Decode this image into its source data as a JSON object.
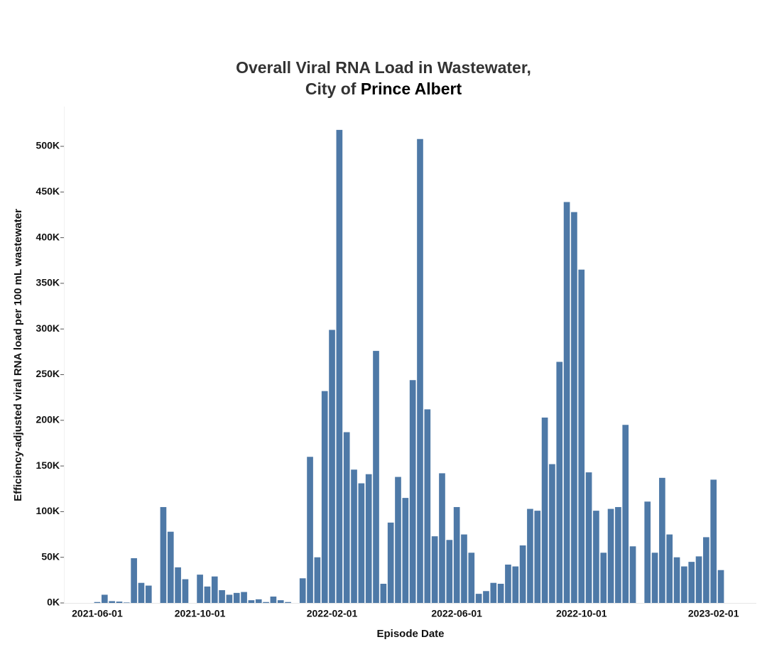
{
  "chart_data": {
    "type": "bar",
    "title": "Overall Viral RNA Load in Wastewater,",
    "title_city_prefix": "City of",
    "title_city": "Prince Albert",
    "x_label": "Episode Date",
    "y_label": "Efficiency-adjusted viral RNA load per 100 mL wastewater",
    "color": "#4e79a7",
    "categories": [
      "2021-06-01",
      null,
      null,
      null,
      null,
      null,
      null,
      null,
      null,
      null,
      null,
      null,
      null,
      null,
      "2021-10-01",
      null,
      null,
      null,
      null,
      null,
      null,
      null,
      null,
      null,
      null,
      null,
      null,
      null,
      null,
      null,
      null,
      null,
      "2022-02-01",
      null,
      null,
      null,
      null,
      null,
      null,
      null,
      null,
      null,
      null,
      null,
      null,
      null,
      null,
      null,
      null,
      "2022-06-01",
      null,
      null,
      null,
      null,
      null,
      null,
      null,
      null,
      null,
      null,
      null,
      null,
      null,
      null,
      null,
      null,
      "2022-10-01",
      null,
      null,
      null,
      null,
      null,
      null,
      null,
      null,
      null,
      null,
      null,
      null,
      null,
      null,
      null,
      null,
      null,
      "2023-02-01",
      null
    ],
    "values": [
      1000,
      9000,
      2000,
      1500,
      500,
      49000,
      22000,
      19000,
      null,
      105000,
      78000,
      39000,
      26000,
      null,
      31000,
      18000,
      29000,
      14000,
      9000,
      11000,
      12000,
      3000,
      4000,
      1000,
      7000,
      3000,
      1000,
      null,
      27000,
      160000,
      50000,
      232000,
      299000,
      518000,
      187000,
      146000,
      131000,
      141000,
      276000,
      21000,
      88000,
      138000,
      115000,
      244000,
      508000,
      212000,
      73000,
      142000,
      69000,
      105000,
      75000,
      55000,
      10000,
      13000,
      22000,
      21000,
      42000,
      40000,
      63000,
      103000,
      101000,
      203000,
      152000,
      264000,
      439000,
      428000,
      365000,
      143000,
      101000,
      55000,
      103000,
      105000,
      195000,
      62000,
      null,
      111000,
      55000,
      137000,
      75000,
      50000,
      40000,
      45000,
      51000,
      72000,
      135000,
      36000
    ],
    "ylim": [
      0,
      540000
    ],
    "yticks": [
      {
        "value": 0,
        "label": "0K"
      },
      {
        "value": 50000,
        "label": "50K"
      },
      {
        "value": 100000,
        "label": "100K"
      },
      {
        "value": 150000,
        "label": "150K"
      },
      {
        "value": 200000,
        "label": "200K"
      },
      {
        "value": 250000,
        "label": "250K"
      },
      {
        "value": 300000,
        "label": "300K"
      },
      {
        "value": 350000,
        "label": "350K"
      },
      {
        "value": 400000,
        "label": "400K"
      },
      {
        "value": 450000,
        "label": "450K"
      },
      {
        "value": 500000,
        "label": "500K"
      }
    ],
    "grid": false
  }
}
